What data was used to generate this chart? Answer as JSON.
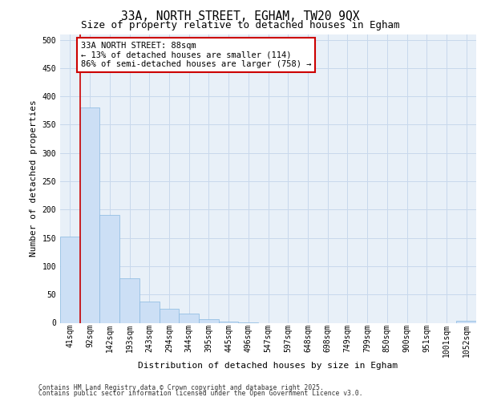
{
  "title1": "33A, NORTH STREET, EGHAM, TW20 9QX",
  "title2": "Size of property relative to detached houses in Egham",
  "xlabel": "Distribution of detached houses by size in Egham",
  "ylabel": "Number of detached properties",
  "categories": [
    "41sqm",
    "92sqm",
    "142sqm",
    "193sqm",
    "243sqm",
    "294sqm",
    "344sqm",
    "395sqm",
    "445sqm",
    "496sqm",
    "547sqm",
    "597sqm",
    "648sqm",
    "698sqm",
    "749sqm",
    "799sqm",
    "850sqm",
    "900sqm",
    "951sqm",
    "1001sqm",
    "1052sqm"
  ],
  "values": [
    152,
    380,
    190,
    78,
    38,
    25,
    16,
    7,
    2,
    1,
    0,
    0,
    0,
    0,
    0,
    0,
    0,
    0,
    0,
    0,
    4
  ],
  "bar_color": "#ccdff5",
  "bar_edge_color": "#88b8e0",
  "grid_color": "#c8d8ec",
  "bg_color": "#e8f0f8",
  "fig_bg": "#ffffff",
  "annotation_line1": "33A NORTH STREET: 88sqm",
  "annotation_line2": "← 13% of detached houses are smaller (114)",
  "annotation_line3": "86% of semi-detached houses are larger (758) →",
  "ann_facecolor": "#ffffff",
  "ann_edgecolor": "#cc0000",
  "vline_color": "#cc0000",
  "ylim_max": 510,
  "yticks": [
    0,
    50,
    100,
    150,
    200,
    250,
    300,
    350,
    400,
    450,
    500
  ],
  "footer_line1": "Contains HM Land Registry data © Crown copyright and database right 2025.",
  "footer_line2": "Contains public sector information licensed under the Open Government Licence v3.0.",
  "title1_fontsize": 10.5,
  "title2_fontsize": 9,
  "tick_fontsize": 7,
  "axis_label_fontsize": 8,
  "ann_fontsize": 7.5,
  "footer_fontsize": 5.8
}
